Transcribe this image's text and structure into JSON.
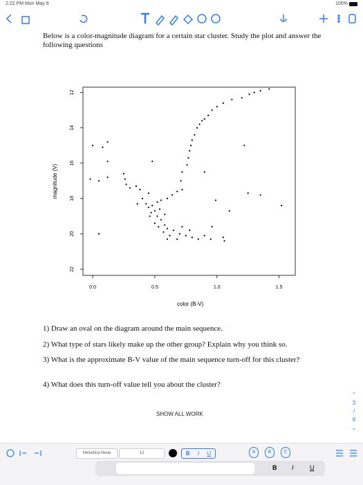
{
  "status_bar": {
    "time": "2:22 PM  Mon May 8",
    "battery": "100%"
  },
  "document": {
    "intro": "Below is a color-magnitude diagram for a certain star cluster. Study the plot and answer the following questions",
    "questions": [
      "1) Draw an oval on the diagram around the main sequence.",
      "2) What type of stars likely make up the other group? Explain why you think so.",
      "3) What is the approximate B-V value of the main sequence turn-off for this cluster?",
      "4) What does this turn-off value tell you about the cluster?"
    ],
    "footer": "SHOW ALL WORK"
  },
  "chart_data": {
    "type": "scatter",
    "xlabel": "color (B-V)",
    "ylabel": "magnitude (V)",
    "xlim": [
      -0.078,
      1.63
    ],
    "ylim": [
      22.35,
      11.7
    ],
    "xticks": [
      {
        "value": 0,
        "label": "0.0"
      },
      0.5,
      {
        "value": 1,
        "label": "1.0"
      },
      1.5
    ],
    "yticks": [
      12,
      14,
      16,
      18,
      20,
      22
    ],
    "color": "#000000",
    "x": [
      0.76,
      0.77,
      0.78,
      0.79,
      0.8,
      0.82,
      0.84,
      0.86,
      0.88,
      0.9,
      0.93,
      0.96,
      1.0,
      1.05,
      1.12,
      1.2,
      1.26,
      1.3,
      1.35,
      1.42,
      0.72,
      0.71,
      0.72,
      0.68,
      0.64,
      0.6,
      0.55,
      0.52,
      0.48,
      0.5,
      0.52,
      0.55,
      0.58,
      0.6,
      0.65,
      0.7,
      0.75,
      0.8,
      0.85,
      0.9,
      0.95,
      0.47,
      0.45,
      0.5,
      0.53,
      0.57,
      0.62,
      0.68,
      0.72,
      0.78,
      0.54,
      0.58,
      0.43,
      0.4,
      0.46,
      0.6,
      1.05,
      1.06,
      0.96,
      -0.02,
      0.05,
      0.12,
      0.0,
      0.08,
      0.12,
      0.12,
      0.05,
      0.25,
      0.26,
      0.27,
      0.3,
      0.35,
      0.38,
      0.45,
      0.48,
      1.22,
      1.25,
      1.35,
      1.52,
      0.99,
      1.1,
      0.9,
      0.36
    ],
    "y": [
      16.1,
      15.7,
      15.3,
      15.0,
      14.7,
      14.4,
      14.0,
      13.8,
      13.6,
      13.5,
      13.3,
      13.0,
      12.8,
      12.6,
      12.4,
      12.3,
      12.1,
      12.0,
      11.9,
      11.8,
      16.5,
      17.0,
      17.5,
      17.6,
      17.8,
      18.0,
      18.1,
      18.2,
      18.4,
      18.7,
      19.0,
      19.2,
      19.5,
      19.7,
      19.8,
      20.0,
      20.1,
      20.2,
      20.3,
      20.1,
      20.3,
      18.8,
      18.5,
      19.4,
      19.6,
      19.9,
      20.1,
      20.3,
      19.6,
      19.8,
      18.6,
      18.9,
      18.3,
      18.0,
      19.0,
      20.3,
      20.2,
      20.4,
      19.6,
      16.9,
      17.0,
      16.8,
      15.0,
      15.1,
      14.8,
      15.9,
      20.0,
      16.6,
      16.9,
      17.2,
      17.4,
      17.3,
      17.5,
      17.7,
      15.9,
      15.0,
      17.7,
      17.8,
      18.4,
      18.1,
      18.7,
      16.5,
      18.3
    ]
  },
  "page_indicator": {
    "current": "3",
    "total": "6"
  },
  "stamps": [
    "A",
    "B",
    "C"
  ],
  "format_toolbar": {
    "font": "Helvetica Neue",
    "size": "12",
    "bold": "B",
    "italic": "I",
    "underline": "U"
  },
  "keyboard_bar": {
    "bold": "B",
    "italic": "I",
    "underline": "U"
  }
}
